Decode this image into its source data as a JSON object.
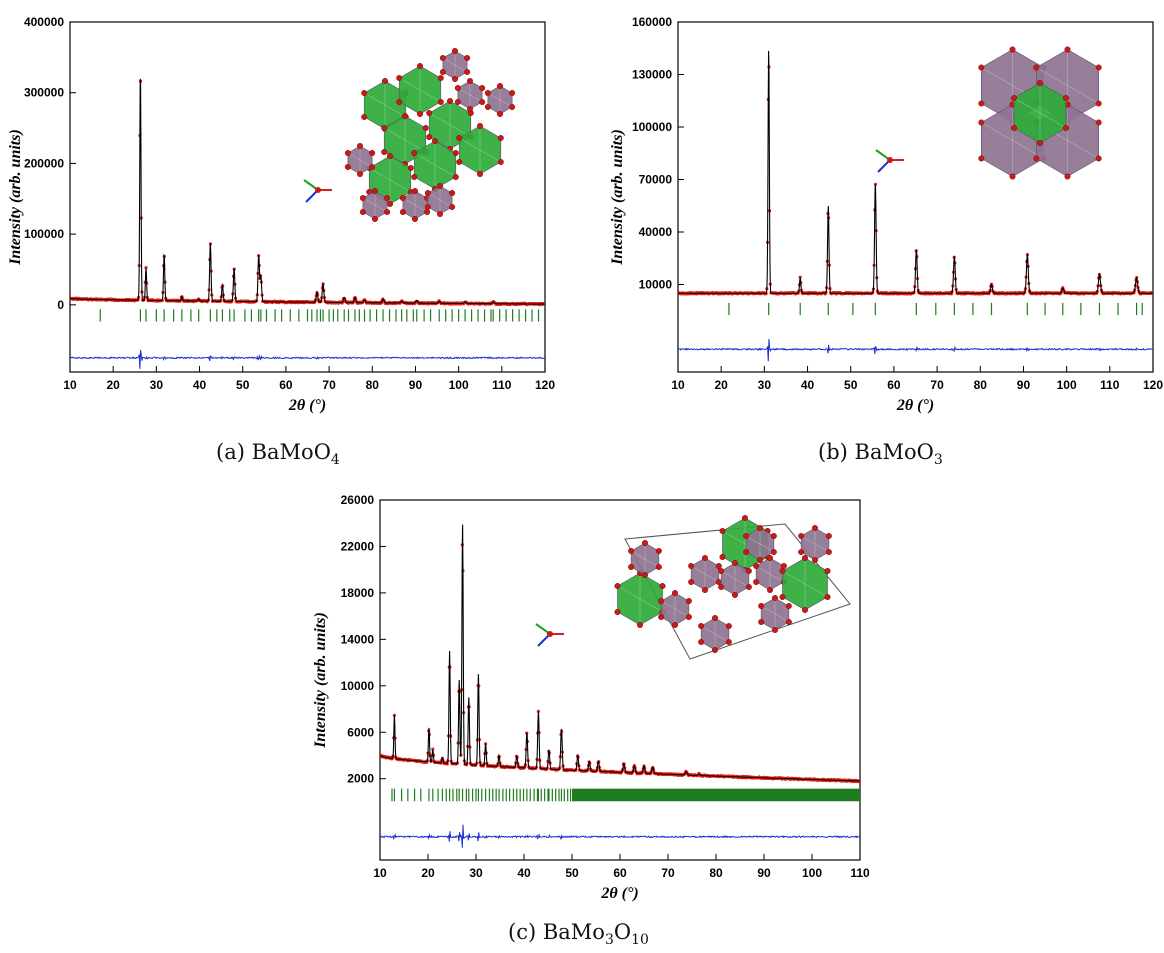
{
  "chart_data": [
    {
      "type": "line",
      "panel": "a",
      "caption_prefix": "(a) ",
      "caption_formula": [
        {
          "t": "BaMoO"
        },
        {
          "s": "4"
        }
      ],
      "xlabel": "2θ (°)",
      "ylabel": "Intensity (arb. units)",
      "xlim": [
        10,
        120
      ],
      "ylim": [
        -95000,
        400000
      ],
      "x_ticks": [
        10,
        20,
        30,
        40,
        50,
        60,
        70,
        80,
        90,
        100,
        110,
        120
      ],
      "y_ticks": [
        0,
        100000,
        200000,
        300000,
        400000
      ],
      "background": 9000,
      "background_shape": {
        "at_10": 9000,
        "at_120": 1000
      },
      "peaks": [
        {
          "x": 26.3,
          "y": 330000
        },
        {
          "x": 27.6,
          "y": 52000
        },
        {
          "x": 31.8,
          "y": 72000
        },
        {
          "x": 35.9,
          "y": 12000
        },
        {
          "x": 39.8,
          "y": 8000
        },
        {
          "x": 42.5,
          "y": 88000
        },
        {
          "x": 45.3,
          "y": 28000
        },
        {
          "x": 48.0,
          "y": 52000
        },
        {
          "x": 53.7,
          "y": 70000
        },
        {
          "x": 54.2,
          "y": 40000
        },
        {
          "x": 67.2,
          "y": 18000
        },
        {
          "x": 68.6,
          "y": 30000
        },
        {
          "x": 73.5,
          "y": 10000
        },
        {
          "x": 76.0,
          "y": 10000
        },
        {
          "x": 78.2,
          "y": 7000
        },
        {
          "x": 82.5,
          "y": 8000
        },
        {
          "x": 86.8,
          "y": 5000
        },
        {
          "x": 90.3,
          "y": 6000
        },
        {
          "x": 95.5,
          "y": 5000
        },
        {
          "x": 101.5,
          "y": 4000
        },
        {
          "x": 108.0,
          "y": 4000
        }
      ],
      "bragg_level": -15000,
      "diff_level": -75000,
      "bragg_positions": [
        17.0,
        26.3,
        27.6,
        30.0,
        31.8,
        34.0,
        35.9,
        38.0,
        39.8,
        42.5,
        44.0,
        45.3,
        47.0,
        48.0,
        50.5,
        52.0,
        53.7,
        54.2,
        55.5,
        57.5,
        59.0,
        61.0,
        63.0,
        65.0,
        66.0,
        67.2,
        68.0,
        68.6,
        70.0,
        71.0,
        72.0,
        73.5,
        74.5,
        76.0,
        77.0,
        78.2,
        79.5,
        81.0,
        82.5,
        84.0,
        85.5,
        86.8,
        88.0,
        89.5,
        90.3,
        92.0,
        93.5,
        95.5,
        97.0,
        98.5,
        100.0,
        101.5,
        103.0,
        104.5,
        106.0,
        107.5,
        108.0,
        109.5,
        111.0,
        112.5,
        114.0,
        115.5,
        117.0,
        118.5
      ]
    },
    {
      "type": "line",
      "panel": "b",
      "caption_prefix": "(b) ",
      "caption_formula": [
        {
          "t": "BaMoO"
        },
        {
          "s": "3"
        }
      ],
      "xlabel": "2θ (°)",
      "ylabel": "Intensity (arb. units)",
      "xlim": [
        10,
        120
      ],
      "ylim": [
        -40000,
        160000
      ],
      "x_ticks": [
        10,
        20,
        30,
        40,
        50,
        60,
        70,
        80,
        90,
        100,
        110,
        120
      ],
      "y_ticks": [
        10000,
        40000,
        70000,
        100000,
        130000,
        160000
      ],
      "background": 5000,
      "peaks": [
        {
          "x": 31.0,
          "y": 145000
        },
        {
          "x": 38.3,
          "y": 14000
        },
        {
          "x": 44.8,
          "y": 55000
        },
        {
          "x": 55.7,
          "y": 68000
        },
        {
          "x": 65.2,
          "y": 30000
        },
        {
          "x": 74.0,
          "y": 26000
        },
        {
          "x": 82.6,
          "y": 10000
        },
        {
          "x": 90.9,
          "y": 27000
        },
        {
          "x": 99.1,
          "y": 8000
        },
        {
          "x": 107.6,
          "y": 16000
        },
        {
          "x": 116.2,
          "y": 14000
        }
      ],
      "bragg_level": -4000,
      "diff_level": -27000,
      "bragg_positions": [
        21.8,
        31.0,
        38.3,
        44.8,
        50.5,
        55.7,
        65.2,
        69.7,
        74.0,
        78.3,
        82.6,
        90.9,
        95.0,
        99.1,
        103.3,
        107.6,
        111.9,
        116.2,
        117.5
      ]
    },
    {
      "type": "line",
      "panel": "c",
      "caption_prefix": "(c) ",
      "caption_formula": [
        {
          "t": "BaMo"
        },
        {
          "s": "3"
        },
        {
          "t": "O"
        },
        {
          "s": "10"
        }
      ],
      "xlabel": "2θ (°)",
      "ylabel": "Intensity (arb. units)",
      "xlim": [
        10,
        110
      ],
      "ylim": [
        -5000,
        26000
      ],
      "x_ticks": [
        10,
        20,
        30,
        40,
        50,
        60,
        70,
        80,
        90,
        100,
        110
      ],
      "y_ticks": [
        2000,
        6000,
        10000,
        14000,
        18000,
        22000,
        26000
      ],
      "background_shape": {
        "at_10": 4000,
        "at_110": 1800
      },
      "peaks": [
        {
          "x": 13.0,
          "y": 7500
        },
        {
          "x": 20.2,
          "y": 6400
        },
        {
          "x": 21.0,
          "y": 4500
        },
        {
          "x": 23.0,
          "y": 3800
        },
        {
          "x": 24.5,
          "y": 13000
        },
        {
          "x": 26.5,
          "y": 10500
        },
        {
          "x": 27.2,
          "y": 24000
        },
        {
          "x": 28.5,
          "y": 9000
        },
        {
          "x": 30.5,
          "y": 11000
        },
        {
          "x": 32.0,
          "y": 5000
        },
        {
          "x": 34.8,
          "y": 4000
        },
        {
          "x": 38.5,
          "y": 4000
        },
        {
          "x": 40.6,
          "y": 6000
        },
        {
          "x": 43.0,
          "y": 7800
        },
        {
          "x": 45.2,
          "y": 4500
        },
        {
          "x": 47.8,
          "y": 6300
        },
        {
          "x": 51.2,
          "y": 4000
        },
        {
          "x": 53.6,
          "y": 3500
        },
        {
          "x": 55.5,
          "y": 3500
        },
        {
          "x": 60.8,
          "y": 3300
        },
        {
          "x": 63.0,
          "y": 3100
        },
        {
          "x": 65.0,
          "y": 3100
        },
        {
          "x": 66.8,
          "y": 3000
        },
        {
          "x": 73.8,
          "y": 2600
        },
        {
          "x": 76.5,
          "y": 2400
        }
      ],
      "bragg_level": 600,
      "diff_level": -3000,
      "bragg_dense_from": 50,
      "bragg_positions": [
        12.5,
        13.0,
        14.5,
        15.8,
        17.2,
        18.5,
        20.2,
        21.0,
        22.1,
        23.0,
        23.8,
        24.5,
        25.2,
        26.0,
        26.5,
        27.2,
        28.0,
        28.5,
        29.3,
        30.0,
        30.5,
        31.2,
        32.0,
        32.8,
        33.5,
        34.2,
        34.8,
        35.6,
        36.3,
        37.0,
        37.8,
        38.5,
        39.2,
        39.9,
        40.6,
        41.3,
        42.1,
        42.8,
        43.0,
        43.6,
        44.3,
        45.0,
        45.2,
        45.9,
        46.6,
        47.3,
        47.8,
        48.4,
        49.1,
        49.7
      ]
    }
  ]
}
